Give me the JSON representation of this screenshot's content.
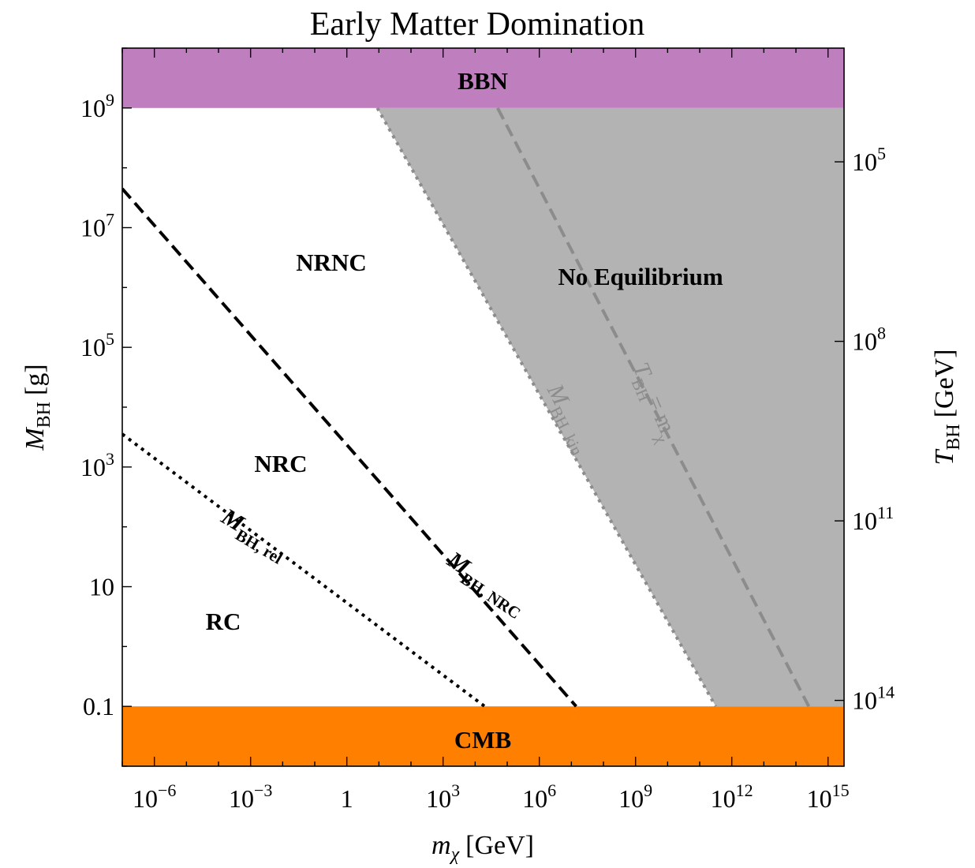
{
  "chart_data": {
    "type": "line",
    "title": "Early Matter Domination",
    "x_axis": {
      "label": "m",
      "label_sub": "χ",
      "label_unit": "[GeV]",
      "scale": "log10",
      "range_log10": [
        -7,
        15.5
      ],
      "major_ticks": [
        {
          "log": -6,
          "base": "10",
          "exp": "−6"
        },
        {
          "log": -3,
          "base": "10",
          "exp": "−3"
        },
        {
          "log": 0,
          "base": "1",
          "exp": ""
        },
        {
          "log": 3,
          "base": "10",
          "exp": "3"
        },
        {
          "log": 6,
          "base": "10",
          "exp": "6"
        },
        {
          "log": 9,
          "base": "10",
          "exp": "9"
        },
        {
          "log": 12,
          "base": "10",
          "exp": "12"
        },
        {
          "log": 15,
          "base": "10",
          "exp": "15"
        }
      ]
    },
    "y_axis": {
      "label": "M",
      "label_sub": "BH",
      "label_unit": "[g]",
      "scale": "log10",
      "range_log10": [
        -2,
        10
      ],
      "major_ticks": [
        {
          "log": -1,
          "base": "0.1",
          "exp": ""
        },
        {
          "log": 1,
          "base": "10",
          "exp": ""
        },
        {
          "log": 3,
          "base": "10",
          "exp": "3"
        },
        {
          "log": 5,
          "base": "10",
          "exp": "5"
        },
        {
          "log": 7,
          "base": "10",
          "exp": "7"
        },
        {
          "log": 9,
          "base": "10",
          "exp": "9"
        }
      ]
    },
    "y2_axis": {
      "label": "T",
      "label_sub": "BH",
      "label_unit": "[GeV]",
      "scale": "log10",
      "major_ticks": [
        {
          "m_bh_log": 8.1,
          "base": "10",
          "exp": "5"
        },
        {
          "m_bh_log": 5.1,
          "base": "10",
          "exp": "8"
        },
        {
          "m_bh_log": 2.1,
          "base": "10",
          "exp": "11"
        },
        {
          "m_bh_log": -0.9,
          "base": "10",
          "exp": "14"
        }
      ]
    },
    "bands": [
      {
        "name": "BBN",
        "y_log_range": [
          9,
          10
        ],
        "color": "#bf7fbf"
      },
      {
        "name": "CMB",
        "y_log_range": [
          -2,
          -1
        ],
        "color": "#ff7f00"
      }
    ],
    "shaded_region": {
      "name": "No Equilibrium",
      "color": "#b3b3b3",
      "boundary": "M_BH,kin"
    },
    "series": [
      {
        "name": "M_BH,NRC",
        "style": "dashed",
        "color": "#000000",
        "points": [
          [
            -7,
            7.65
          ],
          [
            7.15,
            -1.0
          ]
        ]
      },
      {
        "name": "M_BH,rel",
        "style": "dotted",
        "color": "#000000",
        "points": [
          [
            -7,
            3.55
          ],
          [
            4.3,
            -1.0
          ]
        ]
      },
      {
        "name": "M_BH,kin",
        "style": "dotted",
        "color": "#8c8c8c",
        "points": [
          [
            0.95,
            9.0
          ],
          [
            11.5,
            -1.0
          ]
        ]
      },
      {
        "name": "T_BH = m_χ",
        "style": "dashed",
        "color": "#8c8c8c",
        "points": [
          [
            4.7,
            9.0
          ],
          [
            14.4,
            -1.0
          ]
        ]
      }
    ],
    "region_labels": [
      "NRNC",
      "NRC",
      "RC",
      "No Equilibrium"
    ],
    "line_labels": {
      "nrc": {
        "main": "M",
        "sub": "BH, NRC"
      },
      "rel": {
        "main": "M",
        "sub": "BH, rel"
      },
      "kin": {
        "main": "M",
        "sub": "BH, kin"
      },
      "tbh": {
        "main": "T",
        "sub": "BH",
        "eq": "= m",
        "eq_sub": "χ"
      }
    },
    "grid": false,
    "legend": "none"
  }
}
